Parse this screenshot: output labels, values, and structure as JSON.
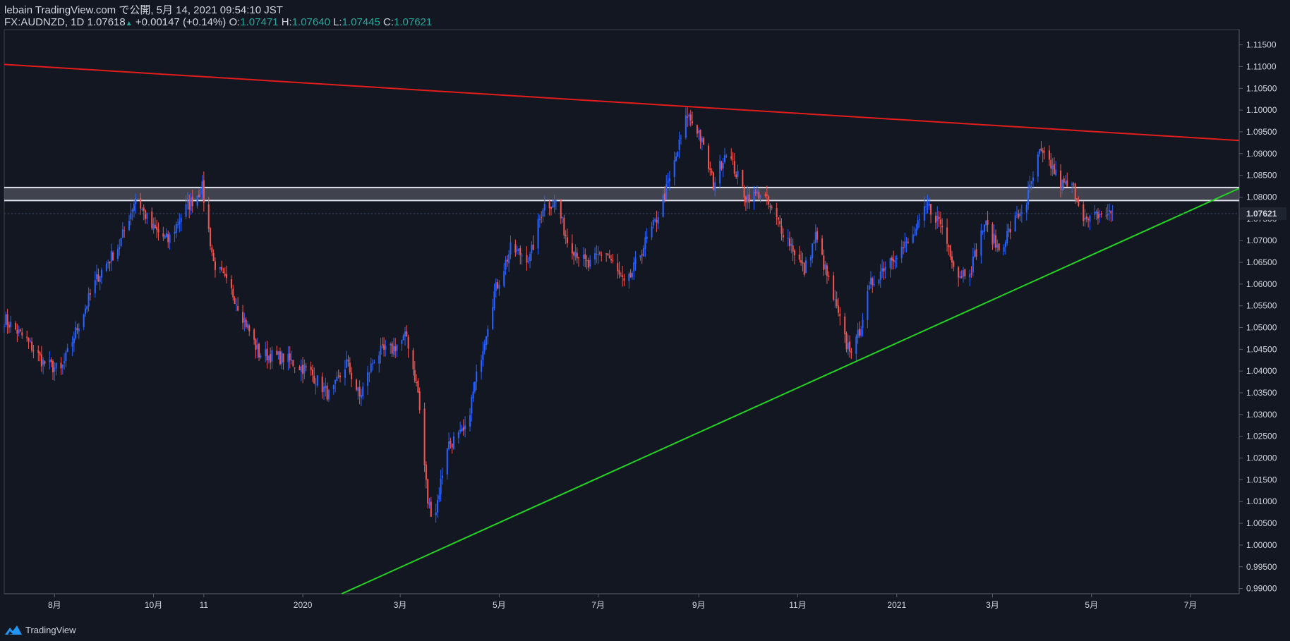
{
  "header": {
    "publish_line": "lebain TradingView.com で公開, 5月 14, 2021 09:54:10 JST",
    "symbol": "FX:AUDNZD, 1D",
    "last": "1.07618",
    "change_arrow": "▲",
    "change": "+0.00147 (+0.14%)",
    "o_label": "O:",
    "o_value": "1.07471",
    "h_label": "H:",
    "h_value": "1.07640",
    "l_label": "L:",
    "l_value": "1.07445",
    "c_label": "C:",
    "c_value": "1.07621"
  },
  "footer": {
    "brand": "TradingView"
  },
  "colors": {
    "background": "#131722",
    "up": "#2962ff",
    "down": "#ef5350",
    "resistance_line": "#e31c1c",
    "support_line": "#22d322",
    "zone": "#e0e3eb",
    "text": "#d1d4dc"
  },
  "chart_data": {
    "type": "candlestick",
    "symbol": "FX:AUDNZD",
    "interval": "1D",
    "ylim": [
      0.9888,
      1.1185
    ],
    "x_start": "2019-07-01",
    "x_end": "2021-07-31",
    "y_ticks": [
      "1.11500",
      "1.11000",
      "1.10500",
      "1.10000",
      "1.09500",
      "1.09000",
      "1.08500",
      "1.08000",
      "1.07500",
      "1.07000",
      "1.06500",
      "1.06000",
      "1.05500",
      "1.05000",
      "1.04500",
      "1.04000",
      "1.03500",
      "1.03000",
      "1.02500",
      "1.02000",
      "1.01500",
      "1.01000",
      "1.00500",
      "1.00000",
      "0.99500",
      "0.99000"
    ],
    "x_ticks": [
      {
        "label": "8月",
        "date": "2019-08-01"
      },
      {
        "label": "10月",
        "date": "2019-10-01"
      },
      {
        "label": "11",
        "date": "2019-11-01"
      },
      {
        "label": "2020",
        "date": "2020-01-01"
      },
      {
        "label": "3月",
        "date": "2020-03-01"
      },
      {
        "label": "5月",
        "date": "2020-05-01"
      },
      {
        "label": "7月",
        "date": "2020-07-01"
      },
      {
        "label": "9月",
        "date": "2020-09-01"
      },
      {
        "label": "11月",
        "date": "2020-11-01"
      },
      {
        "label": "2021",
        "date": "2021-01-01"
      },
      {
        "label": "3月",
        "date": "2021-03-01"
      },
      {
        "label": "5月",
        "date": "2021-05-01"
      },
      {
        "label": "7月",
        "date": "2021-07-01"
      }
    ],
    "price_label": "1.07621",
    "path": [
      [
        "2019-07-01",
        1.052
      ],
      [
        "2019-07-15",
        1.047
      ],
      [
        "2019-07-25",
        1.042
      ],
      [
        "2019-08-05",
        1.04
      ],
      [
        "2019-08-15",
        1.05
      ],
      [
        "2019-08-28",
        1.062
      ],
      [
        "2019-09-10",
        1.069
      ],
      [
        "2019-09-20",
        1.08
      ],
      [
        "2019-09-30",
        1.073
      ],
      [
        "2019-10-10",
        1.07
      ],
      [
        "2019-10-20",
        1.077
      ],
      [
        "2019-10-31",
        1.082
      ],
      [
        "2019-11-07",
        1.065
      ],
      [
        "2019-11-20",
        1.057
      ],
      [
        "2019-12-05",
        1.044
      ],
      [
        "2019-12-20",
        1.043
      ],
      [
        "2020-01-05",
        1.04
      ],
      [
        "2020-01-18",
        1.034
      ],
      [
        "2020-01-28",
        1.042
      ],
      [
        "2020-02-05",
        1.034
      ],
      [
        "2020-02-15",
        1.044
      ],
      [
        "2020-02-25",
        1.045
      ],
      [
        "2020-03-05",
        1.048
      ],
      [
        "2020-03-12",
        1.035
      ],
      [
        "2020-03-18",
        1.01
      ],
      [
        "2020-03-22",
        1.006
      ],
      [
        "2020-03-30",
        1.023
      ],
      [
        "2020-04-10",
        1.026
      ],
      [
        "2020-04-20",
        1.044
      ],
      [
        "2020-04-28",
        1.058
      ],
      [
        "2020-05-08",
        1.068
      ],
      [
        "2020-05-20",
        1.066
      ],
      [
        "2020-05-28",
        1.078
      ],
      [
        "2020-06-05",
        1.079
      ],
      [
        "2020-06-12",
        1.07
      ],
      [
        "2020-06-25",
        1.064
      ],
      [
        "2020-07-05",
        1.068
      ],
      [
        "2020-07-18",
        1.059
      ],
      [
        "2020-07-28",
        1.068
      ],
      [
        "2020-08-05",
        1.074
      ],
      [
        "2020-08-15",
        1.085
      ],
      [
        "2020-08-25",
        1.099
      ],
      [
        "2020-09-01",
        1.095
      ],
      [
        "2020-09-10",
        1.083
      ],
      [
        "2020-09-18",
        1.091
      ],
      [
        "2020-09-30",
        1.08
      ],
      [
        "2020-10-10",
        1.081
      ],
      [
        "2020-10-17",
        1.076
      ],
      [
        "2020-10-28",
        1.069
      ],
      [
        "2020-11-05",
        1.063
      ],
      [
        "2020-11-12",
        1.071
      ],
      [
        "2020-11-22",
        1.058
      ],
      [
        "2020-12-01",
        1.046
      ],
      [
        "2020-12-06",
        1.045
      ],
      [
        "2020-12-16",
        1.06
      ],
      [
        "2020-12-28",
        1.066
      ],
      [
        "2021-01-10",
        1.07
      ],
      [
        "2021-01-20",
        1.078
      ],
      [
        "2021-01-28",
        1.074
      ],
      [
        "2021-02-08",
        1.062
      ],
      [
        "2021-02-16",
        1.064
      ],
      [
        "2021-02-24",
        1.074
      ],
      [
        "2021-03-05",
        1.068
      ],
      [
        "2021-03-14",
        1.074
      ],
      [
        "2021-03-22",
        1.079
      ],
      [
        "2021-03-30",
        1.09
      ],
      [
        "2021-04-05",
        1.088
      ],
      [
        "2021-04-12",
        1.083
      ],
      [
        "2021-04-20",
        1.082
      ],
      [
        "2021-04-28",
        1.074
      ],
      [
        "2021-05-05",
        1.076
      ],
      [
        "2021-05-14",
        1.0762
      ]
    ],
    "resistance_line": {
      "from": [
        "2019-07-01",
        1.1105
      ],
      "to": [
        "2021-07-31",
        1.093
      ]
    },
    "support_line": {
      "from": [
        "2020-01-25",
        0.9888
      ],
      "to": [
        "2021-07-31",
        1.082
      ]
    },
    "resistance_zone": {
      "top": 1.0822,
      "bottom": 1.0792
    }
  }
}
